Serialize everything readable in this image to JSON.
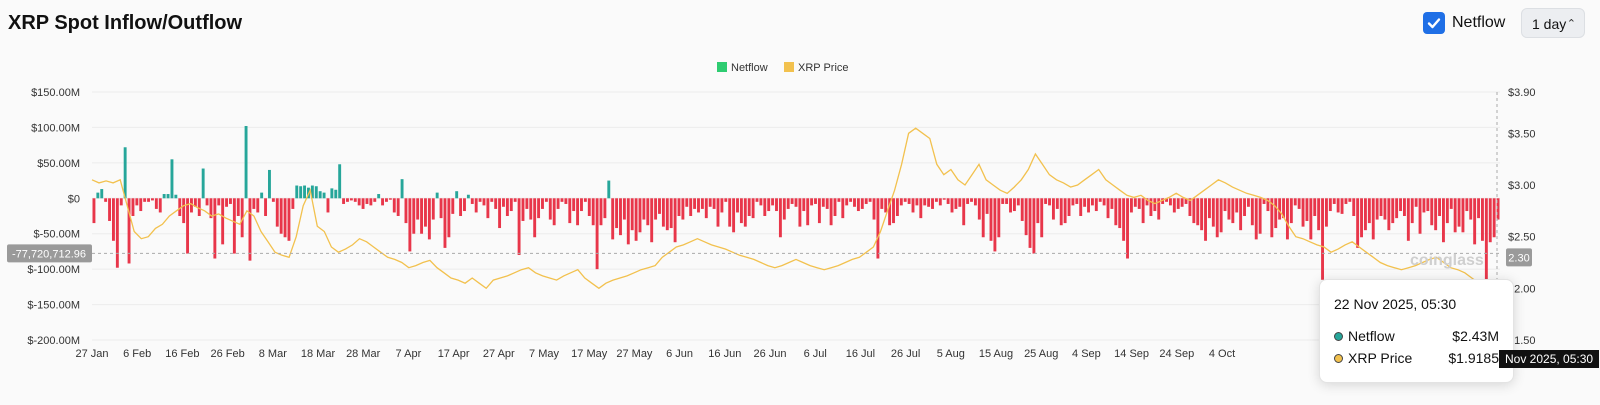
{
  "header": {
    "title": "XRP Spot Inflow/Outflow",
    "netflow_toggle_label": "Netflow",
    "netflow_checked": true,
    "period": "1 day"
  },
  "colors": {
    "inflow": "#26a69a",
    "outflow": "#e8364a",
    "price": "#f2c14e",
    "checkbox": "#1f6fe6"
  },
  "watermark": "coinglass",
  "tooltip": {
    "date": "22 Nov 2025, 05:30",
    "rows": [
      {
        "label": "Netflow",
        "value": "$2.43M",
        "color": "#26a69a"
      },
      {
        "label": "XRP Price",
        "value": "$1.9185",
        "color": "#f2c14e"
      }
    ]
  },
  "crosshair": {
    "left_label": "-77,720,712.96",
    "right_label": "2.30",
    "x_label": "Nov 2025, 05:30"
  },
  "chart_data": {
    "type": "bar",
    "title": "XRP Spot Inflow/Outflow",
    "legend": [
      "Netflow",
      "XRP Price"
    ],
    "legend_position": "top-center",
    "grid": true,
    "x_ticks": [
      "27 Jan",
      "6 Feb",
      "16 Feb",
      "26 Feb",
      "8 Mar",
      "18 Mar",
      "28 Mar",
      "7 Apr",
      "17 Apr",
      "27 Apr",
      "7 May",
      "17 May",
      "27 May",
      "6 Jun",
      "16 Jun",
      "26 Jun",
      "6 Jul",
      "16 Jul",
      "26 Jul",
      "5 Aug",
      "15 Aug",
      "25 Aug",
      "4 Sep",
      "14 Sep",
      "24 Sep",
      "4 Oct"
    ],
    "y_left_ticks": [
      "$150.00M",
      "$100.00M",
      "$50.00M",
      "$0",
      "$-50.00M",
      "$-100.00M",
      "$-150.00M",
      "$-200.00M"
    ],
    "y_left_range": [
      -200,
      150
    ],
    "y_right_ticks": [
      "$3.90",
      "$3.50",
      "$3.00",
      "$2.50",
      "$2.00",
      "$1.50"
    ],
    "y_right_range": [
      1.5,
      3.9
    ],
    "series": [
      {
        "name": "Netflow",
        "unit": "$M",
        "values": [
          -35,
          8,
          13,
          -5,
          -32,
          -60,
          -98,
          -10,
          72,
          -92,
          -25,
          -10,
          -18,
          -5,
          -5,
          -3,
          -15,
          -20,
          6,
          6,
          55,
          5,
          -25,
          -35,
          -78,
          -20,
          -12,
          -25,
          42,
          -10,
          -28,
          -85,
          -10,
          -65,
          -12,
          -8,
          -78,
          -25,
          -55,
          102,
          -88,
          -15,
          -20,
          8,
          -25,
          40,
          -5,
          -40,
          -50,
          -55,
          -60,
          -15,
          18,
          17,
          18,
          15,
          18,
          17,
          10,
          8,
          -20,
          14,
          12,
          48,
          -8,
          -5,
          -3,
          -5,
          -10,
          -15,
          -8,
          -10,
          -5,
          6,
          -10,
          -5,
          -2,
          -20,
          -25,
          27,
          -35,
          -75,
          -50,
          -30,
          -50,
          -40,
          -58,
          -30,
          8,
          -28,
          -70,
          -55,
          -22,
          10,
          -25,
          -18,
          5,
          -8,
          -20,
          -5,
          -10,
          -28,
          -5,
          -15,
          -42,
          -12,
          -25,
          -18,
          -5,
          -80,
          -32,
          -15,
          -30,
          -55,
          -28,
          -15,
          -5,
          -30,
          -38,
          -15,
          -5,
          -8,
          -35,
          -18,
          -38,
          -18,
          -5,
          -25,
          -38,
          -100,
          -38,
          -28,
          25,
          -58,
          -42,
          -52,
          -30,
          -65,
          -45,
          -60,
          -48,
          -30,
          -38,
          -62,
          -30,
          -22,
          -40,
          -45,
          -42,
          -62,
          -25,
          -30,
          -12,
          -25,
          -15,
          -20,
          -15,
          -28,
          -12,
          -15,
          -40,
          -20,
          -5,
          -40,
          -48,
          -20,
          -35,
          -40,
          -25,
          -28,
          -5,
          -10,
          -25,
          -18,
          -10,
          -18,
          -55,
          -30,
          -15,
          -8,
          -12,
          -40,
          -18,
          -38,
          -10,
          -8,
          -35,
          -12,
          -15,
          -38,
          -25,
          -5,
          -28,
          -10,
          -5,
          -12,
          -18,
          -15,
          -8,
          -5,
          -30,
          -85,
          -15,
          -20,
          -38,
          -35,
          -25,
          -10,
          -5,
          -8,
          -20,
          -10,
          -28,
          -10,
          -12,
          -15,
          -5,
          -10,
          -2,
          -8,
          -20,
          -15,
          -12,
          -38,
          -8,
          -5,
          -10,
          -30,
          -55,
          -22,
          -60,
          -75,
          -55,
          -8,
          -8,
          -20,
          -18,
          -10,
          -32,
          -52,
          -70,
          -78,
          -35,
          -55,
          -8,
          -10,
          -30,
          -15,
          -38,
          -35,
          -25,
          -10,
          -8,
          -25,
          -12,
          -20,
          -10,
          -18,
          -5,
          -10,
          -28,
          -15,
          -38,
          -42,
          -60,
          -85,
          -20,
          -12,
          -15,
          -35,
          -10,
          -25,
          -18,
          -30,
          -8,
          -5,
          -10,
          -20,
          -15,
          -12,
          -8,
          -25,
          -35,
          -38,
          -45,
          -60,
          -28,
          -40,
          -55,
          -48,
          -18,
          -30,
          -35,
          -20,
          -45,
          -25,
          -12,
          -38,
          -58,
          -50,
          -8,
          -18,
          -55,
          -42,
          -30,
          -28,
          -58,
          -35,
          -10,
          -15,
          -40,
          -32,
          -58,
          -25,
          -45,
          -115,
          -40,
          -18,
          -8,
          -20,
          -22,
          -8,
          -5,
          -25,
          -70,
          -55,
          -45,
          -35,
          -58,
          -30,
          -25,
          -30,
          -45,
          -35,
          -28,
          -18,
          -25,
          -60,
          -35,
          -12,
          -50,
          -20,
          -18,
          -38,
          -45,
          -25,
          -62,
          -35,
          -15,
          -48,
          -40,
          -48,
          -18,
          -30,
          -65,
          -28,
          -60,
          -180,
          -62,
          -55,
          -30
        ],
        "note": "daily values, plotted right-to-left from axis end"
      },
      {
        "name": "XRP Price",
        "unit": "$",
        "values": [
          3.05,
          3.02,
          3.04,
          3.02,
          3.05,
          2.8,
          2.55,
          2.48,
          2.5,
          2.58,
          2.62,
          2.7,
          2.75,
          2.8,
          2.82,
          2.78,
          2.75,
          2.7,
          2.72,
          2.68,
          2.65,
          2.62,
          2.75,
          2.7,
          2.55,
          2.45,
          2.35,
          2.32,
          2.3,
          2.5,
          2.8,
          2.95,
          2.6,
          2.55,
          2.4,
          2.35,
          2.38,
          2.42,
          2.48,
          2.45,
          2.4,
          2.35,
          2.3,
          2.28,
          2.25,
          2.2,
          2.22,
          2.25,
          2.27,
          2.2,
          2.15,
          2.1,
          2.08,
          2.05,
          2.1,
          2.05,
          2.0,
          2.08,
          2.1,
          2.12,
          2.15,
          2.18,
          2.2,
          2.15,
          2.12,
          2.1,
          2.08,
          2.12,
          2.15,
          2.18,
          2.1,
          2.05,
          2.0,
          2.05,
          2.08,
          2.1,
          2.12,
          2.15,
          2.18,
          2.2,
          2.22,
          2.3,
          2.35,
          2.4,
          2.42,
          2.45,
          2.48,
          2.45,
          2.42,
          2.4,
          2.38,
          2.35,
          2.32,
          2.3,
          2.28,
          2.25,
          2.22,
          2.2,
          2.22,
          2.25,
          2.28,
          2.25,
          2.22,
          2.2,
          2.18,
          2.2,
          2.22,
          2.25,
          2.28,
          2.3,
          2.35,
          2.4,
          2.55,
          2.75,
          2.95,
          3.2,
          3.5,
          3.55,
          3.5,
          3.45,
          3.2,
          3.1,
          3.15,
          3.05,
          3.0,
          3.1,
          3.2,
          3.05,
          3.0,
          2.95,
          2.92,
          2.98,
          3.05,
          3.15,
          3.3,
          3.2,
          3.1,
          3.05,
          3.02,
          2.98,
          3.0,
          3.05,
          3.1,
          3.15,
          3.05,
          3.0,
          2.95,
          2.9,
          2.88,
          2.9,
          2.85,
          2.82,
          2.85,
          2.88,
          2.92,
          2.88,
          2.85,
          2.9,
          2.95,
          3.0,
          3.05,
          3.02,
          2.98,
          2.95,
          2.92,
          2.9,
          2.88,
          2.85,
          2.8,
          2.72,
          2.6,
          2.5,
          2.48,
          2.45,
          2.42,
          2.4,
          2.35,
          2.38,
          2.42,
          2.45,
          2.4,
          2.35,
          2.3,
          2.25,
          2.22,
          2.2,
          2.18,
          2.2,
          2.22,
          2.25,
          2.28,
          2.3,
          2.25,
          2.2,
          2.18,
          2.15,
          2.1,
          2.05,
          2.0,
          1.95,
          1.92
        ]
      }
    ]
  }
}
